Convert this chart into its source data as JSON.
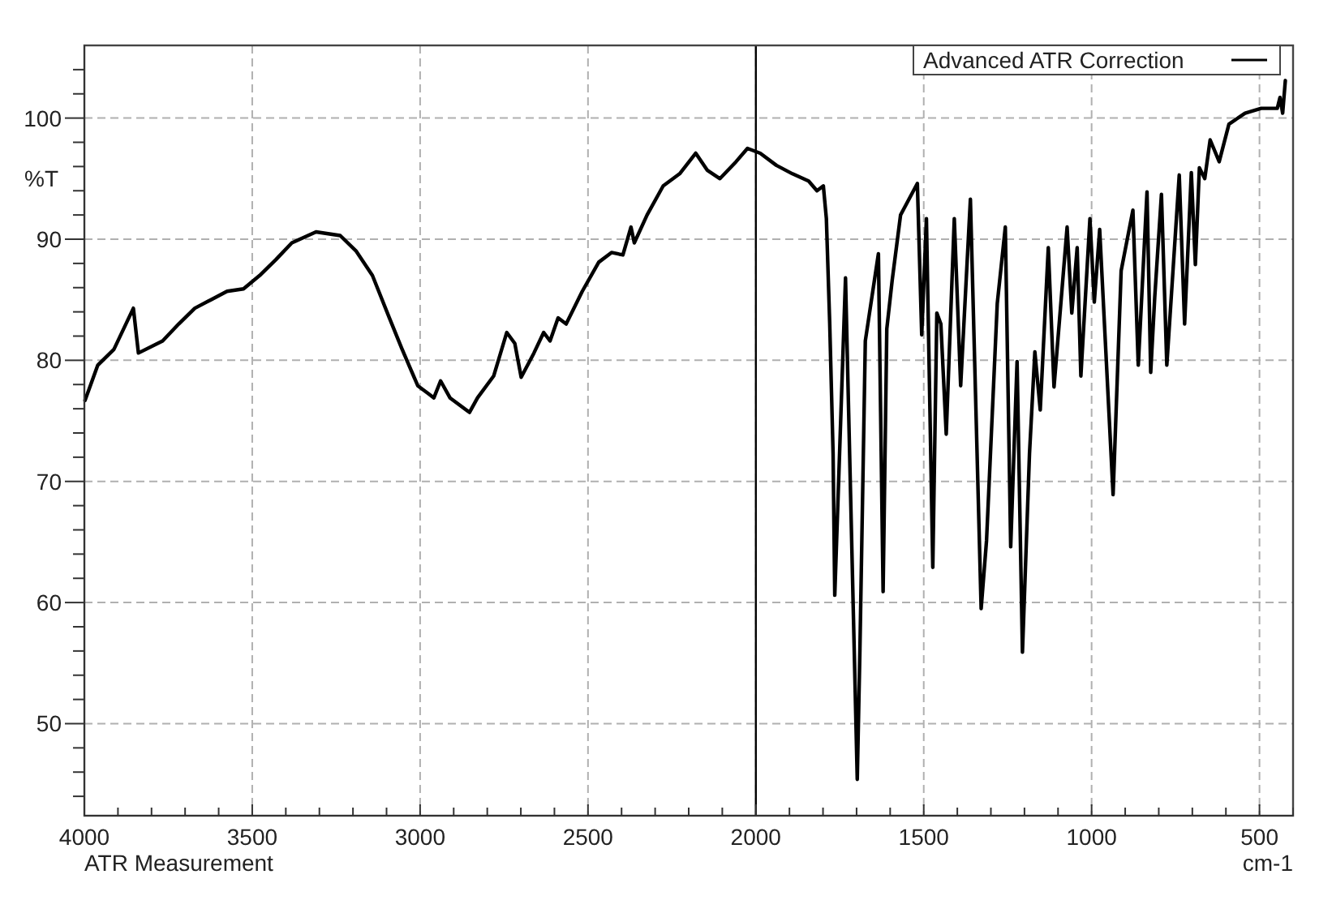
{
  "chart_data": {
    "type": "line",
    "xlabel": "cm-1",
    "ylabel": "%T",
    "annotations": [
      "ATR Measurement"
    ],
    "xlim": [
      4000,
      400
    ],
    "ylim": [
      42.4,
      106
    ],
    "xticks": [
      4000,
      {
        "value": 3900,
        "label": null
      },
      {
        "value": 3800,
        "label": null
      },
      {
        "value": 3700,
        "label": null
      },
      {
        "value": 3600,
        "label": null
      },
      3500,
      {
        "value": 3400,
        "label": null
      },
      {
        "value": 3300,
        "label": null
      },
      {
        "value": 3200,
        "label": null
      },
      {
        "value": 3100,
        "label": null
      },
      3000,
      {
        "value": 2900,
        "label": null
      },
      {
        "value": 2800,
        "label": null
      },
      {
        "value": 2700,
        "label": null
      },
      {
        "value": 2600,
        "label": null
      },
      2500,
      {
        "value": 2400,
        "label": null
      },
      {
        "value": 2300,
        "label": null
      },
      {
        "value": 2200,
        "label": null
      },
      {
        "value": 2100,
        "label": null
      },
      2000,
      {
        "value": 1900,
        "label": null
      },
      {
        "value": 1800,
        "label": null
      },
      {
        "value": 1700,
        "label": null
      },
      {
        "value": 1600,
        "label": null
      },
      1500,
      {
        "value": 1400,
        "label": null
      },
      {
        "value": 1300,
        "label": null
      },
      {
        "value": 1200,
        "label": null
      },
      {
        "value": 1100,
        "label": null
      },
      1000,
      {
        "value": 900,
        "label": null
      },
      {
        "value": 800,
        "label": null
      },
      {
        "value": 700,
        "label": null
      },
      {
        "value": 600,
        "label": null
      },
      500,
      {
        "value": 400,
        "label": null
      }
    ],
    "yticks": [
      {
        "value": 44,
        "label": null
      },
      {
        "value": 46,
        "label": null
      },
      {
        "value": 48,
        "label": null
      },
      50,
      {
        "value": 52,
        "label": null
      },
      {
        "value": 54,
        "label": null
      },
      {
        "value": 56,
        "label": null
      },
      {
        "value": 58,
        "label": null
      },
      60,
      {
        "value": 62,
        "label": null
      },
      {
        "value": 64,
        "label": null
      },
      {
        "value": 66,
        "label": null
      },
      {
        "value": 68,
        "label": null
      },
      70,
      {
        "value": 72,
        "label": null
      },
      {
        "value": 74,
        "label": null
      },
      {
        "value": 76,
        "label": null
      },
      {
        "value": 78,
        "label": null
      },
      80,
      {
        "value": 82,
        "label": null
      },
      {
        "value": 84,
        "label": null
      },
      {
        "value": 86,
        "label": null
      },
      {
        "value": 88,
        "label": null
      },
      90,
      {
        "value": 92,
        "label": null
      },
      {
        "value": 94,
        "label": null
      },
      {
        "value": 96,
        "label": null
      },
      {
        "value": 98,
        "label": null
      },
      100,
      {
        "value": 102,
        "label": null
      },
      {
        "value": 104,
        "label": null
      }
    ],
    "grid": true,
    "legend": "top right",
    "line_style": "solid",
    "marker": "none",
    "ref_lines": [
      {
        "axis": "x",
        "value": 2000,
        "color": "#000000"
      }
    ],
    "series": [
      {
        "name": "Advanced ATR Correction",
        "color": "#000000",
        "x": [
          3998,
          3960,
          3912,
          3854,
          3839,
          3767,
          3719,
          3671,
          3623,
          3575,
          3526,
          3478,
          3430,
          3382,
          3310,
          3238,
          3190,
          3142,
          3093,
          3055,
          3007,
          2973,
          2959,
          2939,
          2911,
          2853,
          2829,
          2781,
          2742,
          2718,
          2699,
          2661,
          2632,
          2613,
          2589,
          2565,
          2517,
          2468,
          2430,
          2396,
          2372,
          2362,
          2324,
          2276,
          2227,
          2179,
          2145,
          2107,
          2059,
          2025,
          1987,
          1939,
          1891,
          1843,
          1818,
          1799,
          1790,
          1780,
          1770,
          1765,
          1733,
          1698,
          1690,
          1674,
          1635,
          1621,
          1610,
          1594,
          1569,
          1519,
          1506,
          1492,
          1473,
          1461,
          1449,
          1433,
          1409,
          1390,
          1361,
          1329,
          1313,
          1281,
          1257,
          1241,
          1222,
          1206,
          1185,
          1169,
          1153,
          1129,
          1112,
          1073,
          1059,
          1043,
          1032,
          1005,
          992,
          976,
          936,
          912,
          877,
          861,
          835,
          824,
          812,
          792,
          776,
          739,
          723,
          703,
          691,
          679,
          663,
          647,
          620,
          591,
          543,
          495,
          447,
          439,
          431,
          423
        ],
        "values": [
          76.7,
          79.6,
          80.9,
          84.3,
          80.6,
          81.6,
          83,
          84.3,
          85,
          85.7,
          85.9,
          87,
          88.3,
          89.7,
          90.6,
          90.3,
          89,
          87,
          83.6,
          81,
          77.9,
          77.2,
          76.9,
          78.3,
          76.9,
          75.7,
          76.9,
          78.7,
          82.3,
          81.4,
          78.6,
          80.6,
          82.3,
          81.6,
          83.5,
          83,
          85.7,
          88.1,
          88.9,
          88.7,
          91,
          89.7,
          92,
          94.4,
          95.4,
          97.1,
          95.7,
          95,
          96.4,
          97.5,
          97.1,
          96.1,
          95.4,
          94.8,
          94,
          94.4,
          91.7,
          83,
          72.3,
          60.6,
          86.8,
          45.4,
          56.2,
          81.6,
          88.8,
          60.9,
          82.6,
          86.6,
          92,
          94.6,
          82.1,
          91.7,
          62.9,
          83.9,
          83,
          73.9,
          91.7,
          77.9,
          93.3,
          59.5,
          65.1,
          84.7,
          91,
          64.6,
          79.9,
          55.9,
          72.3,
          80.7,
          75.9,
          89.3,
          77.8,
          91,
          83.9,
          89.3,
          78.7,
          91.7,
          84.8,
          90.8,
          68.9,
          87.4,
          92.4,
          79.6,
          93.9,
          79,
          85.2,
          93.7,
          79.6,
          95.3,
          83,
          95.5,
          87.9,
          95.9,
          95,
          98.2,
          96.4,
          99.5,
          100.4,
          100.8,
          100.8,
          101.7,
          100.4,
          103.1
        ]
      }
    ]
  }
}
